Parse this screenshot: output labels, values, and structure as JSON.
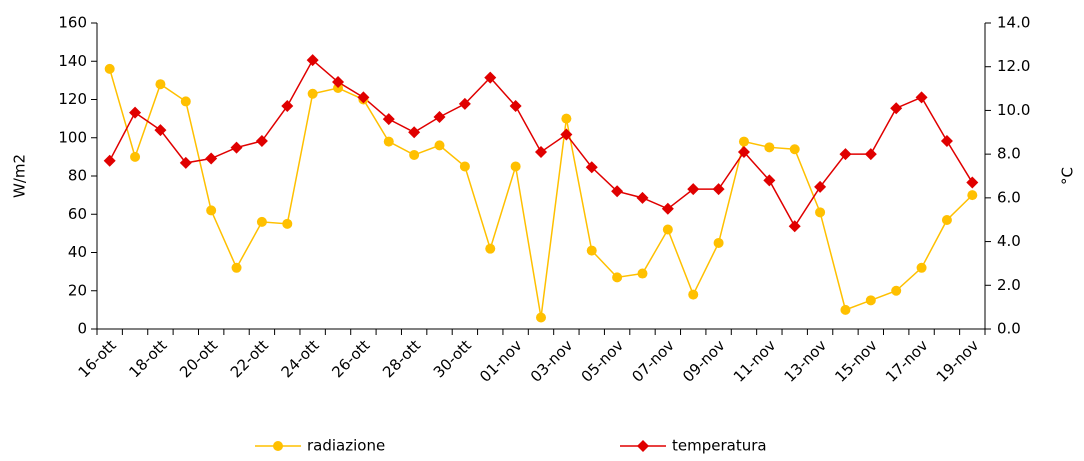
{
  "chart_data": {
    "type": "line",
    "categories": [
      "16-ott",
      null,
      "18-ott",
      null,
      "20-ott",
      null,
      "22-ott",
      null,
      "24-ott",
      null,
      "26-ott",
      null,
      "28-ott",
      null,
      "30-ott",
      null,
      "01-nov",
      null,
      "03-nov",
      null,
      "05-nov",
      null,
      "07-nov",
      null,
      "09-nov",
      null,
      "11-nov",
      null,
      "13-nov",
      null,
      "15-nov",
      null,
      "17-nov",
      null,
      "19-nov"
    ],
    "ylabel": "W/m2",
    "y2label": "°C",
    "ylim": [
      0,
      160
    ],
    "yticks": [
      0,
      20,
      40,
      60,
      80,
      100,
      120,
      140,
      160
    ],
    "y2lim": [
      0,
      14
    ],
    "y2ticks": [
      {
        "value": 0,
        "label": "0.0"
      },
      {
        "value": 2,
        "label": "2.0"
      },
      {
        "value": 4,
        "label": "4.0"
      },
      {
        "value": 6,
        "label": "6.0"
      },
      {
        "value": 8,
        "label": "8.0"
      },
      {
        "value": 10,
        "label": "10.0"
      },
      {
        "value": 12,
        "label": "12.0"
      },
      {
        "value": 14,
        "label": "14.0"
      }
    ],
    "legend": "bottom",
    "series": [
      {
        "name": "radiazione",
        "color": "#ffc000",
        "marker": "circle",
        "values": [
          136,
          90,
          128,
          119,
          62,
          32,
          56,
          55,
          123,
          126,
          120,
          98,
          91,
          96,
          85,
          42,
          85,
          6,
          110,
          41,
          27,
          29,
          52,
          18,
          45,
          98,
          95,
          94,
          61,
          10,
          15,
          20,
          32,
          57,
          70
        ]
      },
      {
        "name": "temperatura",
        "color": "#e00000",
        "marker": "diamond",
        "axis": "y2",
        "values": [
          7.7,
          9.9,
          9.1,
          7.6,
          7.8,
          8.3,
          8.6,
          10.2,
          12.3,
          11.3,
          10.6,
          9.6,
          9.0,
          9.7,
          10.3,
          11.5,
          10.2,
          8.1,
          8.9,
          7.4,
          6.3,
          6.0,
          5.5,
          6.4,
          6.4,
          8.1,
          6.8,
          4.7,
          6.5,
          8.0,
          8.0,
          10.1,
          10.6,
          8.6,
          6.7
        ]
      }
    ]
  }
}
